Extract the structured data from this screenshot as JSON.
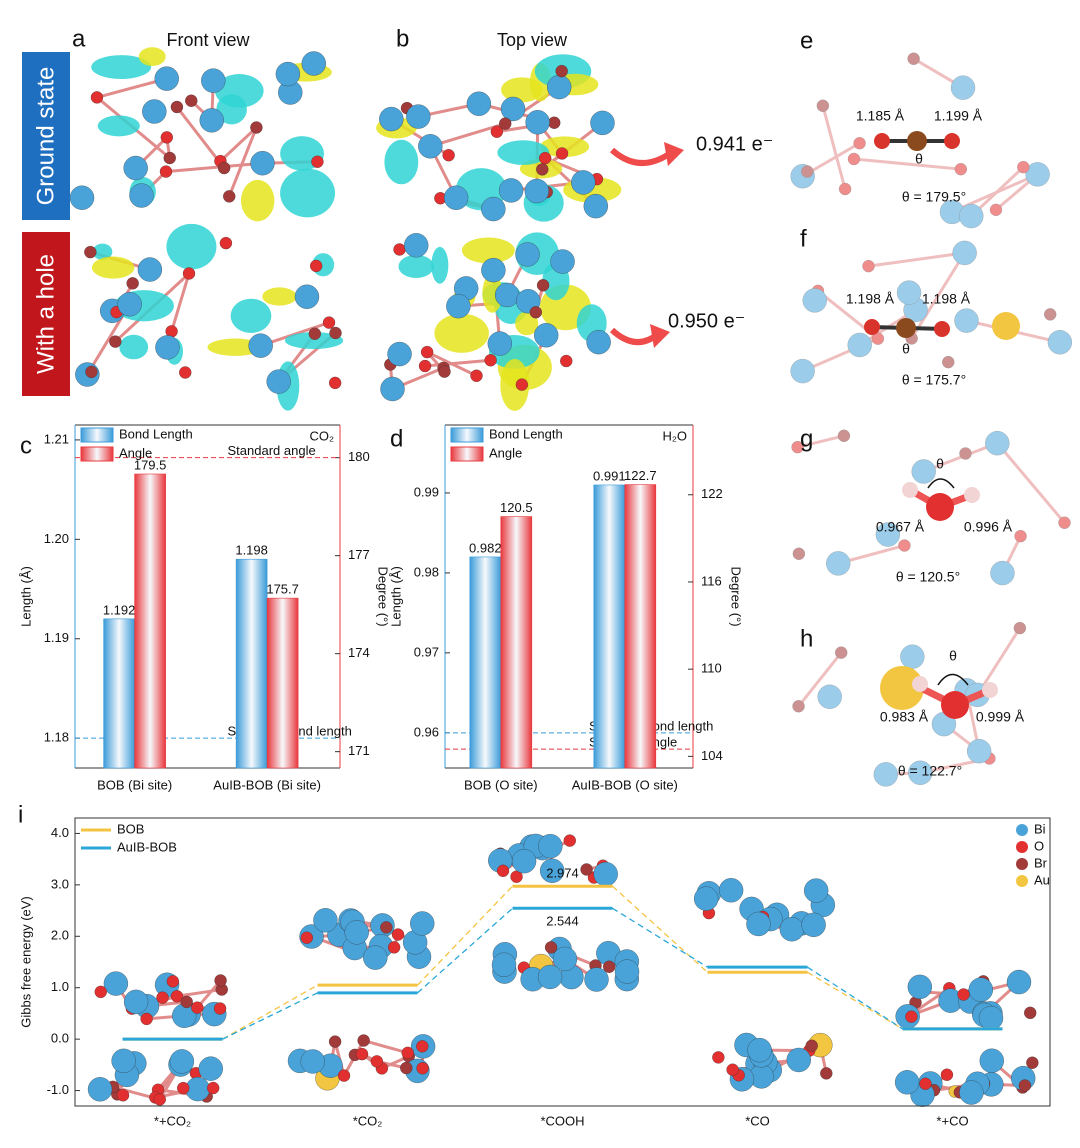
{
  "panel_letters": [
    "a",
    "b",
    "c",
    "d",
    "e",
    "f",
    "g",
    "h",
    "i"
  ],
  "views": {
    "front": "Front view",
    "top": "Top view",
    "ground_state": "Ground state",
    "with_hole": "With a hole",
    "charge_ground": "0.941 e⁻",
    "charge_hole": "0.950 e⁻"
  },
  "structures": [
    {
      "bonds": [
        "1.185 Å",
        "1.199 Å"
      ],
      "theta": "θ",
      "angle": "θ = 179.5°"
    },
    {
      "bonds": [
        "1.198 Å",
        "1.198 Å"
      ],
      "theta": "θ",
      "angle": "θ = 175.7°"
    },
    {
      "bonds": [
        "0.967 Å",
        "0.996 Å"
      ],
      "theta": "θ",
      "angle": "θ = 120.5°"
    },
    {
      "bonds": [
        "0.983 Å",
        "0.999 Å"
      ],
      "theta": "θ",
      "angle": "θ = 122.7°"
    }
  ],
  "chart_data": [
    {
      "type": "bar",
      "corner_label": "CO₂",
      "y_label": "Length (Å)",
      "y2_label": "Degree (°)",
      "categories": [
        "BOB (Bi site)",
        "AuIB-BOB (Bi site)"
      ],
      "series": [
        {
          "name": "Bond Length",
          "color": "#3a9bd9",
          "values": [
            1.192,
            1.198
          ]
        },
        {
          "name": "Angle",
          "color": "#e8383d",
          "axis": "y2",
          "values": [
            179.5,
            175.7
          ]
        }
      ],
      "ylim": [
        1.177,
        1.2115
      ],
      "yticks": [
        1.18,
        1.19,
        {
          "value": 1.2,
          "label": "1.20"
        },
        1.21
      ],
      "y2lim": [
        170.5,
        181
      ],
      "y2ticks": [
        171,
        174,
        177,
        180
      ],
      "reference_lines": [
        {
          "label": "Standard angle",
          "value": 180,
          "axis": "y2",
          "color": "#e8383d"
        },
        {
          "label": "Standard bond length",
          "value": 1.18,
          "color": "#3a9bd9"
        }
      ]
    },
    {
      "type": "bar",
      "corner_label": "H₂O",
      "y_label": "Length (Å)",
      "y2_label": "Degree (°)",
      "categories": [
        "BOB (O site)",
        "AuIB-BOB (O site)"
      ],
      "series": [
        {
          "name": "Bond Length",
          "color": "#3a9bd9",
          "values": [
            0.982,
            0.991
          ]
        },
        {
          "name": "Angle",
          "color": "#e8383d",
          "axis": "y2",
          "values": [
            120.5,
            122.7
          ]
        }
      ],
      "ylim": [
        0.9556,
        0.9985
      ],
      "yticks": [
        0.96,
        0.97,
        0.98,
        0.99
      ],
      "y2lim": [
        103.2,
        126.8
      ],
      "y2ticks": [
        104,
        110,
        116,
        122
      ],
      "reference_lines": [
        {
          "label": "Standard bond length",
          "value": 0.96,
          "color": "#3a9bd9"
        },
        {
          "label": "Standard angle",
          "value": 104.5,
          "axis": "y2",
          "color": "#e8383d"
        }
      ]
    },
    {
      "type": "energy",
      "y_label": "Gibbs free energy (eV)",
      "categories": [
        "*+CO₂",
        "*CO₂",
        "*COOH",
        "*CO",
        "*+CO"
      ],
      "series": [
        {
          "name": "BOB",
          "color": "#f5c342",
          "values": [
            0,
            1.05,
            2.974,
            1.3,
            0.2
          ]
        },
        {
          "name": "AuIB-BOB",
          "color": "#2aa7d8",
          "values": [
            0,
            0.9,
            2.544,
            1.4,
            0.2
          ]
        }
      ],
      "ylim": [
        -1.3,
        4.3
      ],
      "yticks": [
        {
          "value": -1,
          "label": "-1.0"
        },
        {
          "value": 0,
          "label": "0.0"
        },
        {
          "value": 1,
          "label": "1.0"
        },
        {
          "value": 2,
          "label": "2.0"
        },
        {
          "value": 3,
          "label": "3.0"
        },
        {
          "value": 4,
          "label": "4.0"
        }
      ],
      "atom_legend": [
        {
          "name": "Bi",
          "color": "#4aa3d8"
        },
        {
          "name": "O",
          "color": "#e23030"
        },
        {
          "name": "Br",
          "color": "#a33a3a"
        },
        {
          "name": "Au",
          "color": "#f2c640"
        }
      ]
    }
  ]
}
